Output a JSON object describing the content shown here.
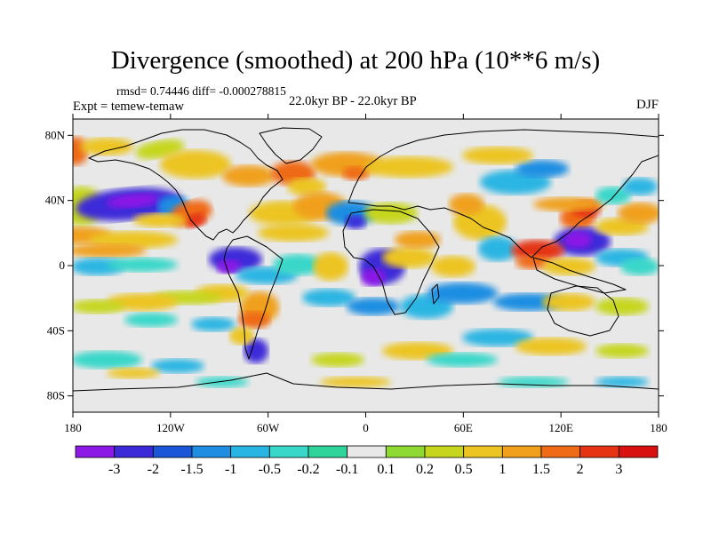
{
  "title": "Divergence (smoothed) at 200 hPa (10**6 m/s)",
  "stats": "rmsd= 0.74446 diff= -0.000278815",
  "experiment": "Expt = temew-temaw",
  "period": "22.0kyr BP - 22.0kyr BP",
  "season": "DJF",
  "axes": {
    "lat_ticks": [
      "80N",
      "40N",
      "0",
      "40S",
      "80S"
    ],
    "lat_values": [
      80,
      40,
      0,
      -40,
      -80
    ],
    "lon_ticks": [
      "180",
      "120W",
      "60W",
      "0",
      "60E",
      "120E",
      "180"
    ],
    "lon_values": [
      -180,
      -120,
      -60,
      0,
      60,
      120,
      180
    ]
  },
  "colorbar": {
    "labels": [
      "-3",
      "-2",
      "-1.5",
      "-1",
      "-0.5",
      "-0.2",
      "-0.1",
      "0.1",
      "0.2",
      "0.5",
      "1",
      "1.5",
      "2",
      "3"
    ],
    "colors": [
      "#8c19e6",
      "#3c2ad8",
      "#1b56d8",
      "#1f8ee2",
      "#29b5e3",
      "#38d7c9",
      "#2fd49a",
      "#e8e8e8",
      "#8fd933",
      "#c6d61d",
      "#ecc523",
      "#f0a01c",
      "#ef6b16",
      "#e43414",
      "#d81010"
    ]
  },
  "map_fields": {
    "background_color": "#e8e8e8",
    "coast_color": "#000000"
  }
}
